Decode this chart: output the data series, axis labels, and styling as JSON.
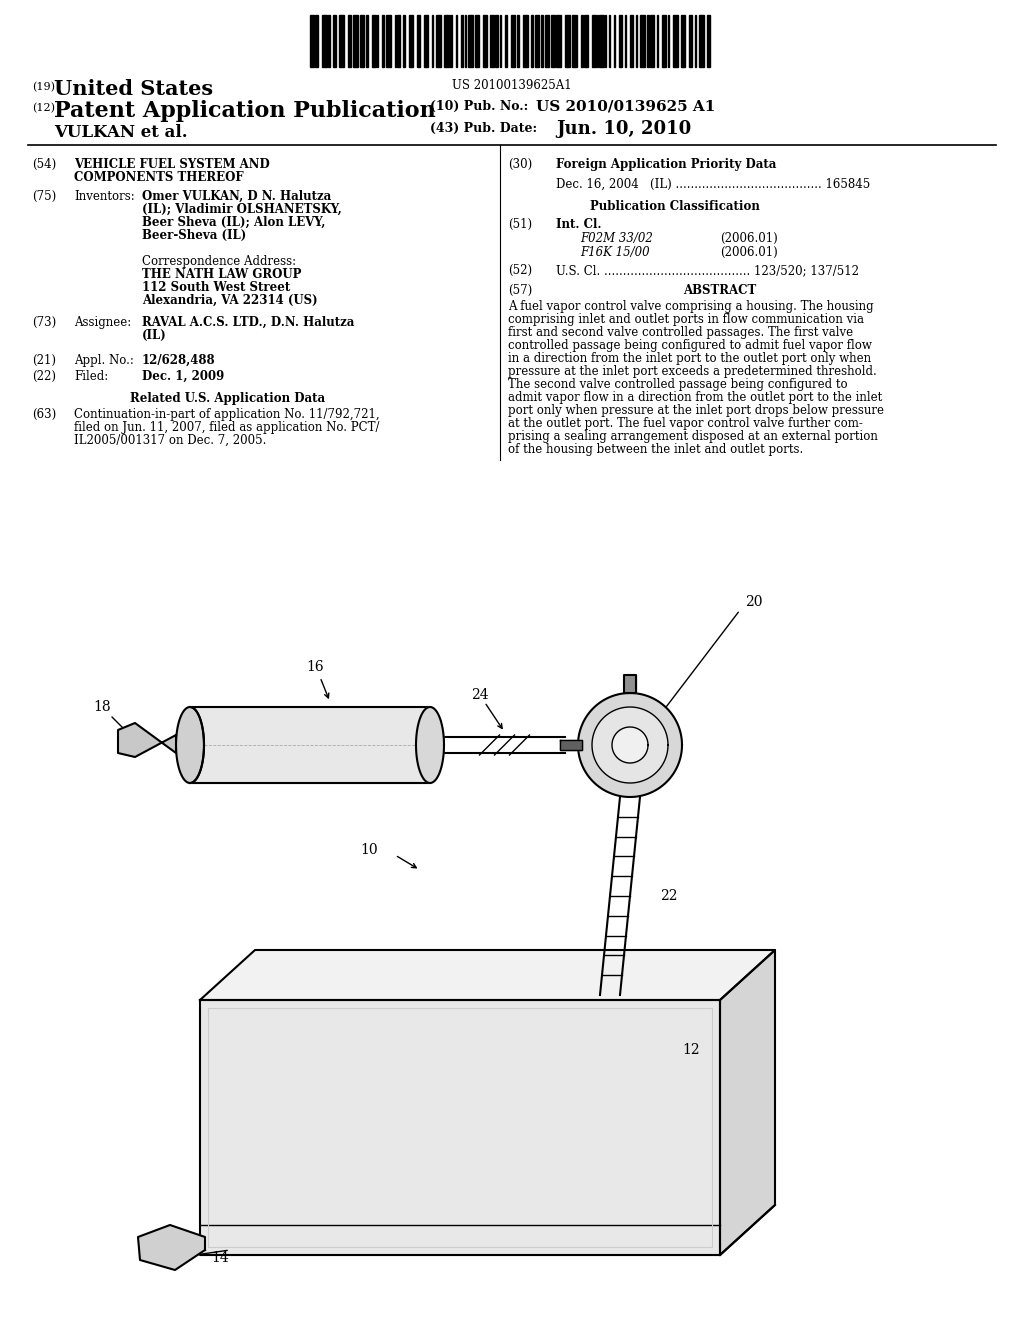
{
  "bg_color": "#ffffff",
  "barcode_text": "US 20100139625A1",
  "header": {
    "country": "(19) United States",
    "pub_type": "(12) Patent Application Publication",
    "inventors": "VULKAN et al.",
    "pub_no_label": "(10) Pub. No.:",
    "pub_no": "US 2010/0139625 A1",
    "pub_date_label": "(43) Pub. Date:",
    "pub_date": "Jun. 10, 2010"
  },
  "left_col": {
    "f54_num": "(54)",
    "f54_line1": "VEHICLE FUEL SYSTEM AND",
    "f54_line2": "COMPONENTS THEREOF",
    "f75_num": "(75)",
    "f75_label": "Inventors:",
    "f75_line1": "Omer VULKAN, D N. Halutza",
    "f75_line2": "(IL); Vladimir OLSHANETSKY,",
    "f75_line3": "Beer Sheva (IL); Alon LEVY,",
    "f75_line4": "Beer-Sheva (IL)",
    "corr_head": "Correspondence Address:",
    "corr1": "THE NATH LAW GROUP",
    "corr2": "112 South West Street",
    "corr3": "Alexandria, VA 22314 (US)",
    "f73_num": "(73)",
    "f73_label": "Assignee:",
    "f73_line1": "RAVAL A.C.S. LTD., D.N. Halutza",
    "f73_line2": "(IL)",
    "f21_num": "(21)",
    "f21_label": "Appl. No.:",
    "f21_val": "12/628,488",
    "f22_num": "(22)",
    "f22_label": "Filed:",
    "f22_val": "Dec. 1, 2009",
    "related_head": "Related U.S. Application Data",
    "f63_num": "(63)",
    "f63_line1": "Continuation-in-part of application No. 11/792,721,",
    "f63_line2": "filed on Jun. 11, 2007, filed as application No. PCT/",
    "f63_line3": "IL2005/001317 on Dec. 7, 2005."
  },
  "right_col": {
    "f30_num": "(30)",
    "f30_head": "Foreign Application Priority Data",
    "f30_entry": "Dec. 16, 2004   (IL) ....................................... 165845",
    "pub_class_head": "Publication Classification",
    "f51_num": "(51)",
    "f51_head": "Int. Cl.",
    "f51_line1a": "F02M 33/02",
    "f51_line1b": "(2006.01)",
    "f51_line2a": "F16K 15/00",
    "f51_line2b": "(2006.01)",
    "f52_num": "(52)",
    "f52_entry": "U.S. Cl. ....................................... 123/520; 137/512",
    "f57_num": "(57)",
    "f57_head": "ABSTRACT",
    "abstract": "A fuel vapor control valve comprising a housing. The housing comprising inlet and outlet ports in flow communication via first and second valve controlled passages. The first valve controlled passage being configured to admit fuel vapor flow in a direction from the inlet port to the outlet port only when pressure at the inlet port exceeds a predetermined threshold. The second valve controlled passage being configured to admit vapor flow in a direction from the outlet port to the inlet port only when pressure at the inlet port drops below pressure at the outlet port. The fuel vapor control valve further com-prising a sealing arrangement disposed at an external portion of the housing between the inlet and outlet ports."
  }
}
